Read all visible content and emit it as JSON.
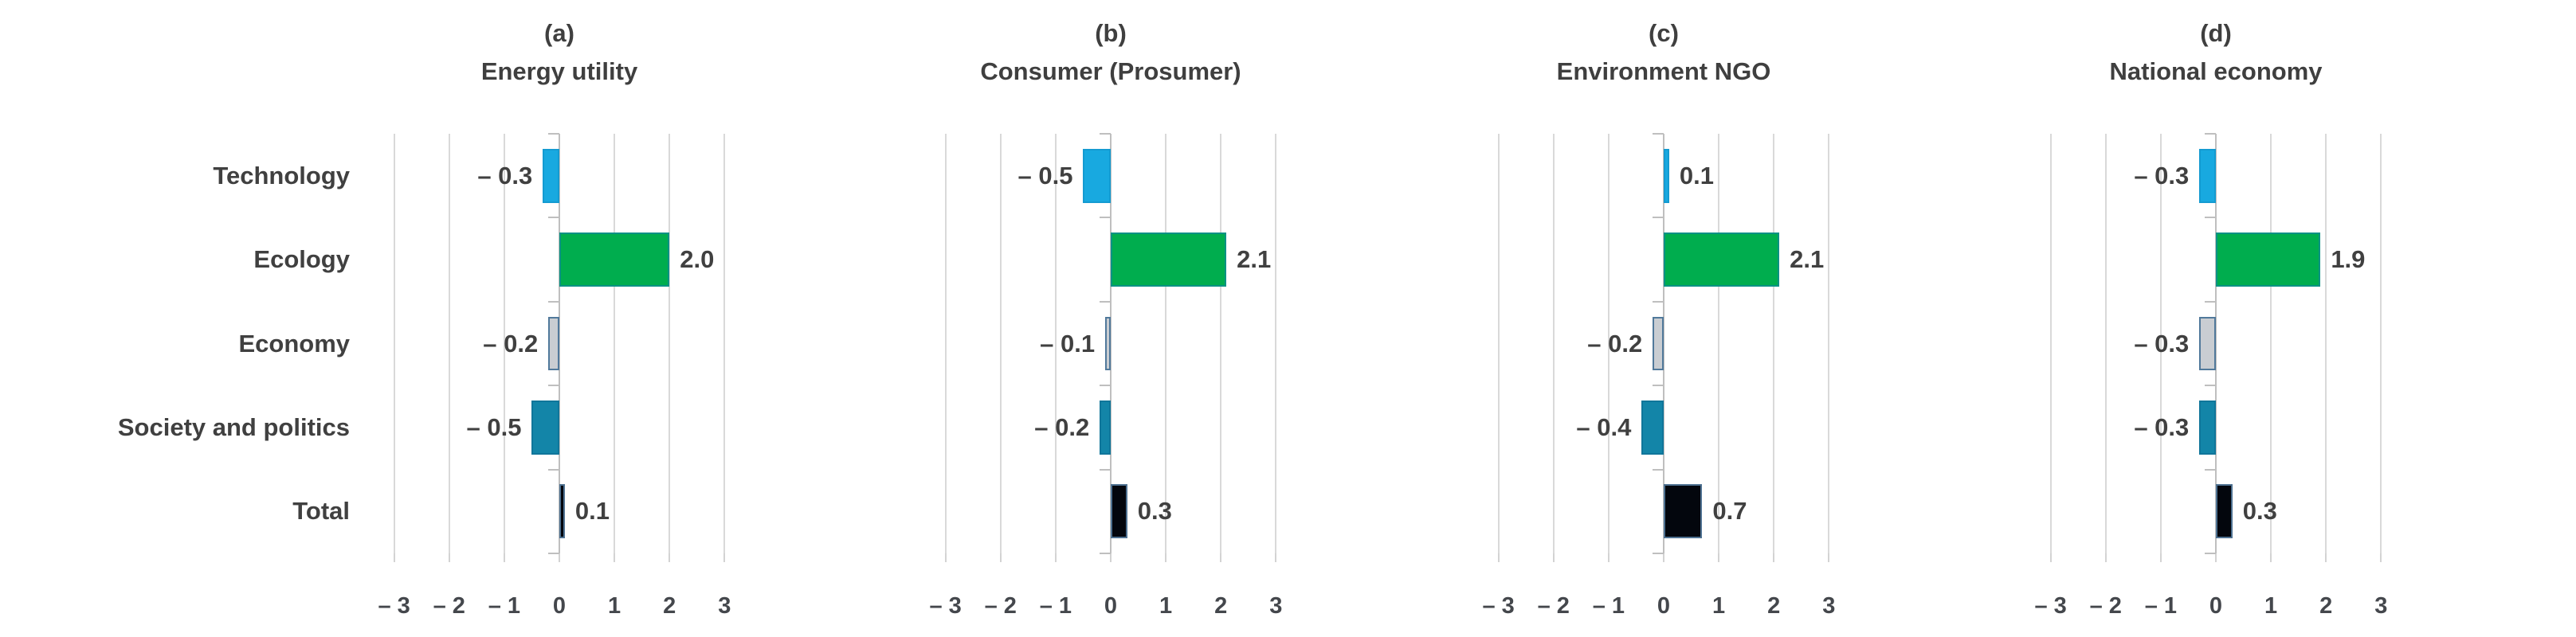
{
  "chart_data": {
    "type": "bar",
    "orientation": "horizontal",
    "title": "",
    "categories": [
      "Technology",
      "Ecology",
      "Economy",
      "Society and politics",
      "Total"
    ],
    "panels": [
      {
        "tag": "(a)",
        "title": "Energy utility",
        "values": [
          -0.3,
          2.0,
          -0.2,
          -0.5,
          0.1
        ],
        "value_labels": [
          "– 0.3",
          "2.0",
          "– 0.2",
          "– 0.5",
          "0.1"
        ]
      },
      {
        "tag": "(b)",
        "title": "Consumer (Prosumer)",
        "values": [
          -0.5,
          2.1,
          -0.1,
          -0.2,
          0.3
        ],
        "value_labels": [
          "– 0.5",
          "2.1",
          "– 0.1",
          "– 0.2",
          "0.3"
        ]
      },
      {
        "tag": "(c)",
        "title": "Environment NGO",
        "values": [
          0.1,
          2.1,
          -0.2,
          -0.4,
          0.7
        ],
        "value_labels": [
          "0.1",
          "2.1",
          "– 0.2",
          "– 0.4",
          "0.7"
        ]
      },
      {
        "tag": "(d)",
        "title": "National economy",
        "values": [
          -0.3,
          1.9,
          -0.3,
          -0.3,
          0.3
        ],
        "value_labels": [
          "– 0.3",
          "1.9",
          "– 0.3",
          "– 0.3",
          "0.3"
        ]
      }
    ],
    "xlim": [
      -3,
      3
    ],
    "x_ticks": [
      -3,
      -2,
      -1,
      0,
      1,
      2,
      3
    ],
    "x_tick_labels": [
      "– 3",
      "– 2",
      "– 1",
      "0",
      "1",
      "2",
      "3"
    ],
    "grid": true,
    "legend": "none",
    "series_colors": [
      {
        "category": "Technology",
        "fill": "#18a9e0",
        "border": "#149bd1"
      },
      {
        "category": "Ecology",
        "fill": "#00ad4e",
        "border": "#0b9284"
      },
      {
        "category": "Economy",
        "fill": "#c9cdd2",
        "border": "#51799b"
      },
      {
        "category": "Society and politics",
        "fill": "#1385a8",
        "border": "#10769a"
      },
      {
        "category": "Total",
        "fill": "#03060d",
        "border": "#4e7191"
      }
    ],
    "gridline_color": "#d9d9d9",
    "zero_axis_color": "#bfbfbf",
    "text_color": "#404040"
  }
}
